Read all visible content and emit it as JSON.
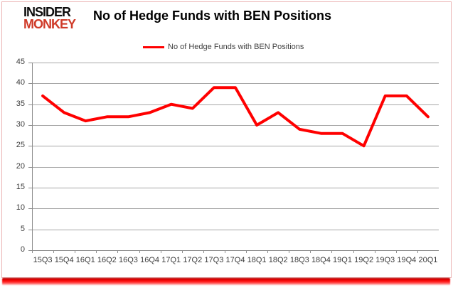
{
  "brand": {
    "line1": "INSIDER",
    "line2": "MONKEY",
    "color_line1": "#0d0d0d",
    "color_line2": "#cf3a28"
  },
  "header": {
    "title": "No of Hedge Funds with BEN Positions"
  },
  "chart_data": {
    "type": "line",
    "title": "No of Hedge Funds with BEN Positions",
    "legend_label": "No of Hedge Funds with BEN Positions",
    "legend_position": "top",
    "grid": true,
    "categories": [
      "15Q3",
      "15Q4",
      "16Q1",
      "16Q2",
      "16Q3",
      "16Q4",
      "17Q1",
      "17Q2",
      "17Q3",
      "17Q4",
      "18Q1",
      "18Q2",
      "18Q3",
      "18Q4",
      "19Q1",
      "19Q2",
      "19Q3",
      "19Q4",
      "20Q1"
    ],
    "values": [
      37,
      33,
      31,
      32,
      32,
      33,
      35,
      34,
      39,
      39,
      30,
      33,
      29,
      28,
      28,
      25,
      37,
      37,
      32
    ],
    "ylim": [
      0,
      45
    ],
    "y_ticks": [
      0,
      5,
      10,
      15,
      20,
      25,
      30,
      35,
      40,
      45
    ],
    "colors": {
      "line": "#ff0000",
      "grid": "#a6a6a6",
      "axis": "#8c8c8c",
      "tick_text": "#3c3c3c"
    }
  }
}
